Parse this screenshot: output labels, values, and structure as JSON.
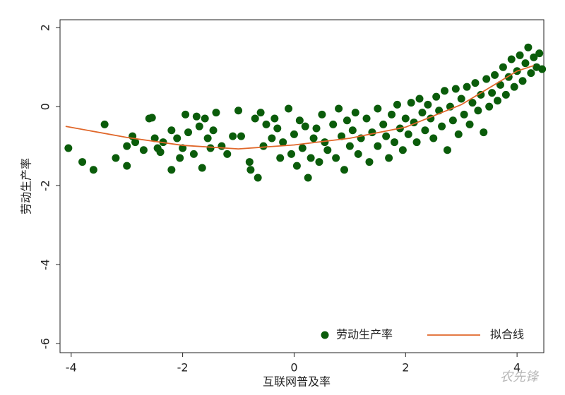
{
  "chart_data": {
    "type": "scatter",
    "x_label": "互联网普及率",
    "y_label": "劳动生产率",
    "xlim": [
      -4.2,
      4.48
    ],
    "ylim": [
      -6.23,
      2.2
    ],
    "xticks": [
      -4,
      -2,
      0,
      2,
      4
    ],
    "yticks": [
      -6,
      -4,
      -2,
      0,
      2
    ],
    "legend": "bottom-right",
    "watermark": "农先锋",
    "series": [
      {
        "name": "劳动生产率",
        "color": "#0a5c0a",
        "kind": "points",
        "x": [
          -4.05,
          -3.8,
          -3.6,
          -3.4,
          -3.2,
          -3.0,
          -3.0,
          -2.9,
          -2.85,
          -2.7,
          -2.6,
          -2.55,
          -2.5,
          -2.45,
          -2.4,
          -2.35,
          -2.2,
          -2.2,
          -2.1,
          -2.05,
          -2.0,
          -1.95,
          -1.9,
          -1.8,
          -1.75,
          -1.7,
          -1.65,
          -1.6,
          -1.55,
          -1.5,
          -1.45,
          -1.4,
          -1.3,
          -1.2,
          -1.1,
          -1.0,
          -0.95,
          -0.8,
          -0.78,
          -0.7,
          -0.65,
          -0.6,
          -0.55,
          -0.5,
          -0.4,
          -0.35,
          -0.3,
          -0.25,
          -0.2,
          -0.1,
          -0.05,
          0,
          0.05,
          0.1,
          0.15,
          0.2,
          0.25,
          0.3,
          0.35,
          0.4,
          0.45,
          0.5,
          0.55,
          0.6,
          0.7,
          0.75,
          0.8,
          0.85,
          0.9,
          0.95,
          1.0,
          1.05,
          1.1,
          1.15,
          1.2,
          1.3,
          1.35,
          1.4,
          1.5,
          1.5,
          1.6,
          1.65,
          1.7,
          1.75,
          1.8,
          1.85,
          1.9,
          1.95,
          2.0,
          2.05,
          2.1,
          2.15,
          2.2,
          2.25,
          2.3,
          2.35,
          2.4,
          2.45,
          2.5,
          2.55,
          2.6,
          2.65,
          2.7,
          2.75,
          2.8,
          2.85,
          2.9,
          2.95,
          3.0,
          3.05,
          3.1,
          3.15,
          3.2,
          3.25,
          3.3,
          3.35,
          3.4,
          3.45,
          3.5,
          3.55,
          3.6,
          3.65,
          3.7,
          3.75,
          3.8,
          3.85,
          3.9,
          3.95,
          4.0,
          4.05,
          4.1,
          4.15,
          4.2,
          4.25,
          4.3,
          4.35,
          4.4,
          4.45
        ],
        "values": [
          -1.05,
          -1.4,
          -1.6,
          -0.45,
          -1.3,
          -1.5,
          -1.0,
          -0.75,
          -0.9,
          -1.1,
          -0.3,
          -0.28,
          -0.8,
          -1.05,
          -1.15,
          -0.9,
          -1.6,
          -0.6,
          -0.8,
          -1.3,
          -1.05,
          -0.2,
          -0.65,
          -1.2,
          -0.25,
          -0.5,
          -1.55,
          -0.3,
          -0.8,
          -1.05,
          -0.6,
          -0.15,
          -1.0,
          -1.2,
          -0.75,
          -0.1,
          -0.75,
          -1.4,
          -1.6,
          -0.3,
          -1.8,
          -0.15,
          -1.0,
          -0.45,
          -0.8,
          -0.3,
          -0.55,
          -1.3,
          -0.9,
          -0.05,
          -1.2,
          -0.7,
          -1.5,
          -0.35,
          -1.05,
          -0.5,
          -1.8,
          -1.3,
          -0.8,
          -0.55,
          -1.4,
          -0.2,
          -0.9,
          -1.1,
          -0.45,
          -1.3,
          -0.05,
          -0.75,
          -1.6,
          -0.35,
          -1.0,
          -0.6,
          -0.15,
          -1.2,
          -0.8,
          -0.3,
          -1.4,
          -0.65,
          -0.05,
          -1.0,
          -0.45,
          -0.75,
          -1.3,
          -0.2,
          -0.9,
          0.05,
          -0.55,
          -1.1,
          -0.3,
          -0.7,
          0.1,
          -0.4,
          -0.9,
          0.2,
          -0.15,
          -0.6,
          0.05,
          -0.3,
          -0.8,
          0.25,
          -0.1,
          -0.5,
          0.4,
          -1.1,
          0.0,
          -0.35,
          0.45,
          -0.7,
          0.2,
          -0.2,
          0.5,
          -0.45,
          0.1,
          0.6,
          -0.1,
          0.3,
          -0.65,
          0.7,
          0.0,
          0.35,
          0.8,
          0.15,
          0.55,
          1.0,
          0.3,
          0.75,
          1.2,
          0.5,
          0.9,
          1.3,
          0.65,
          1.1,
          1.5,
          0.85,
          1.25,
          1.0,
          1.35,
          0.95
        ]
      },
      {
        "name": "拟合线",
        "color": "#e0672a",
        "kind": "line",
        "x": [
          -4.1,
          -3,
          -2,
          -1,
          0,
          1,
          2,
          3,
          4,
          4.3
        ],
        "values": [
          -0.5,
          -0.78,
          -0.98,
          -1.07,
          -0.97,
          -0.8,
          -0.52,
          0.05,
          0.9,
          1.04
        ]
      }
    ]
  }
}
